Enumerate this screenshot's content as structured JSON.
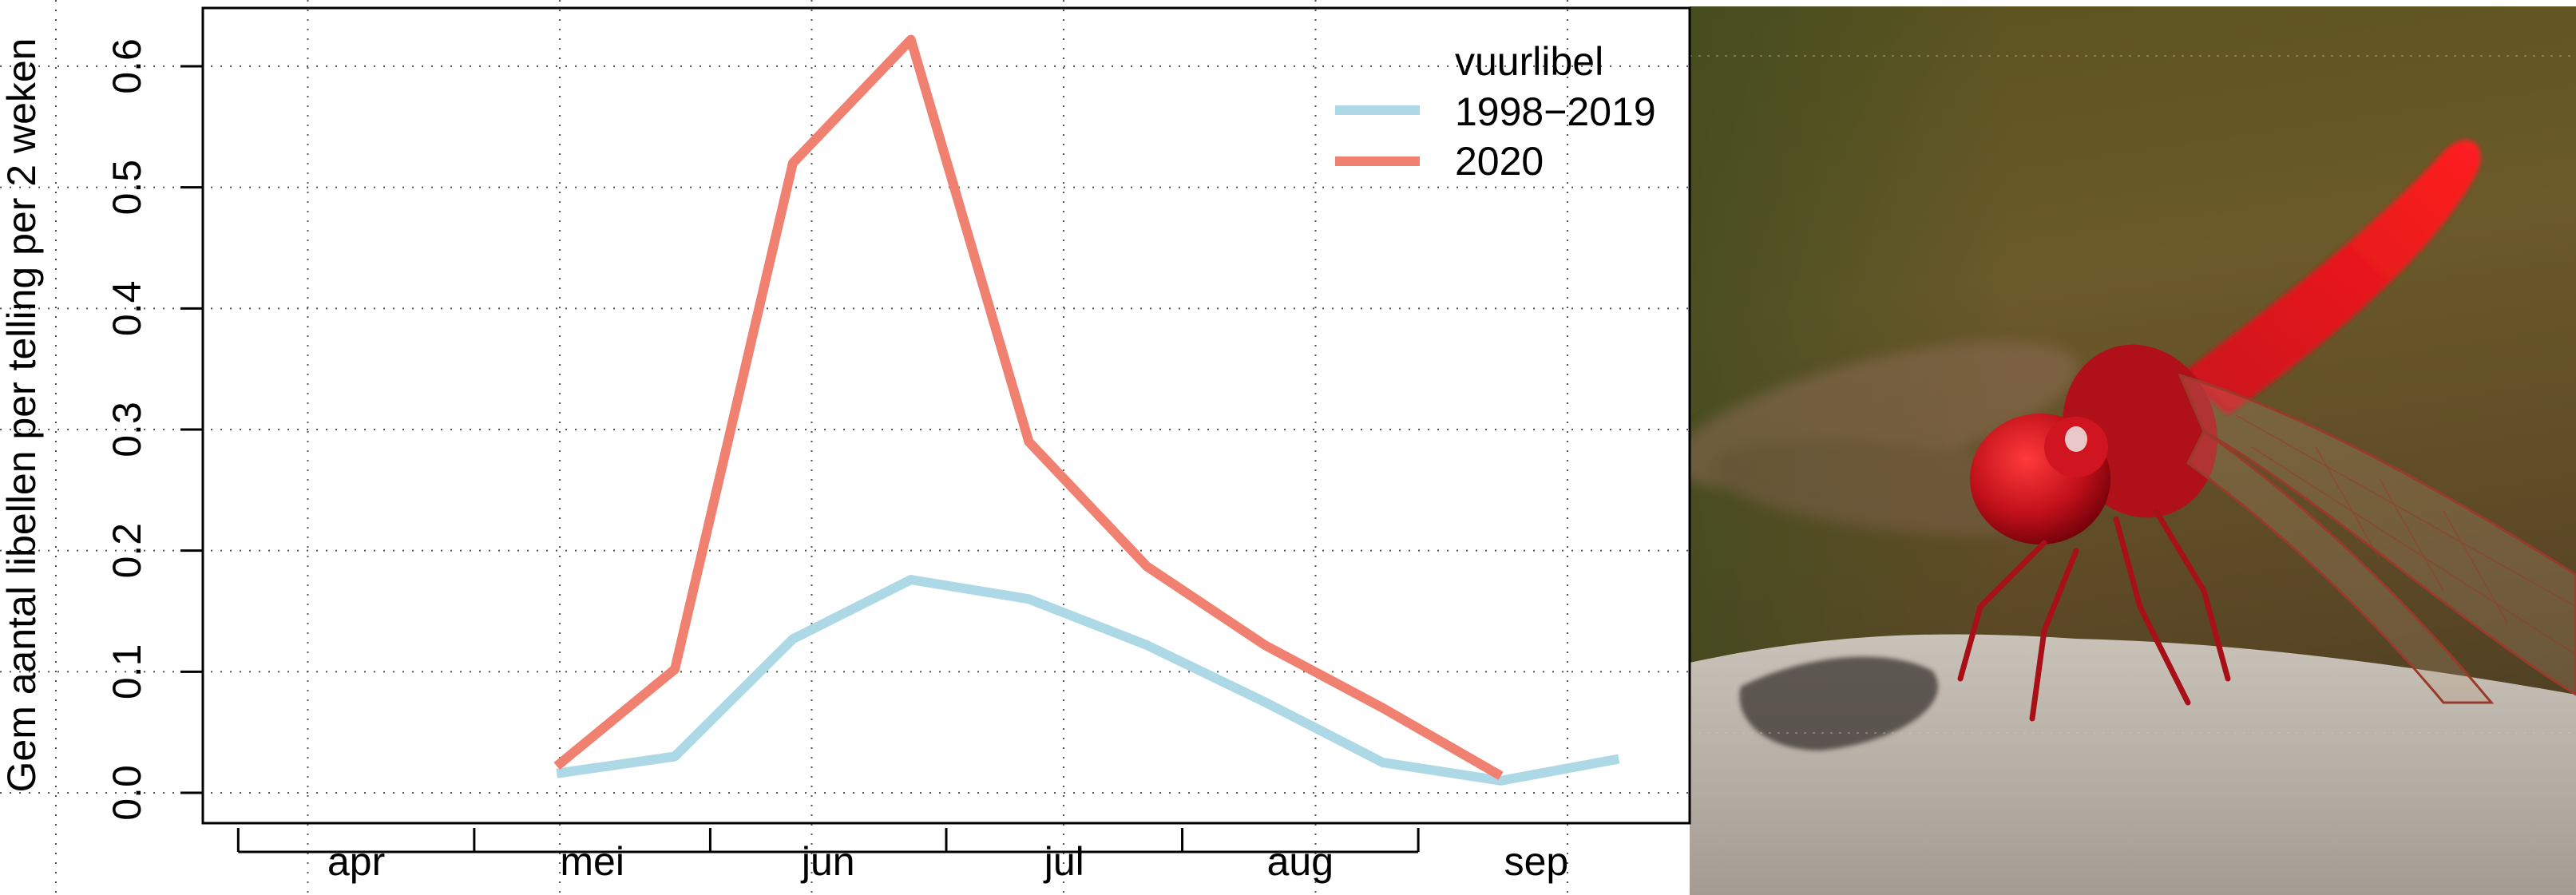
{
  "chart_data": {
    "type": "line",
    "ylabel": "Gem aantal libellen per telling per 2 weken",
    "xlabel": "",
    "ylim": [
      -0.02,
      0.645
    ],
    "y_ticks": [
      "0.0",
      "0.1",
      "0.2",
      "0.3",
      "0.4",
      "0.5",
      "0.6"
    ],
    "x_months": [
      "apr",
      "mei",
      "jun",
      "jul",
      "aug",
      "sep"
    ],
    "x_range": [
      0,
      12.6
    ],
    "grid": true,
    "legend_title": "vuurlibel",
    "legend_position": "top-right",
    "series": [
      {
        "name": "1998−2019",
        "color": "#add8e6",
        "x": [
          3.0,
          4.0,
          5.0,
          6.0,
          7.0,
          8.0,
          9.0,
          10.0,
          11.0,
          12.0
        ],
        "values": [
          0.016,
          0.03,
          0.127,
          0.176,
          0.16,
          0.122,
          0.075,
          0.025,
          0.01,
          0.028
        ]
      },
      {
        "name": "2020",
        "color": "#f08070",
        "x": [
          3.0,
          4.0,
          5.0,
          6.0,
          7.0,
          8.0,
          9.0,
          10.0,
          11.0
        ],
        "values": [
          0.022,
          0.102,
          0.52,
          0.622,
          0.29,
          0.187,
          0.122,
          0.07,
          0.014
        ]
      }
    ]
  },
  "photo": {
    "subject": "vuurlibel"
  }
}
